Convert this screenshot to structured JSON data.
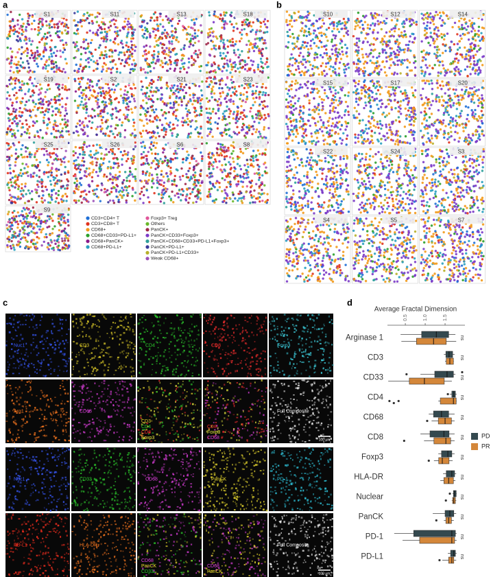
{
  "panel_a": {
    "label": "a",
    "samples": [
      "S1",
      "S11",
      "S13",
      "S18",
      "S19",
      "S2",
      "S21",
      "S23",
      "S25",
      "S26",
      "S6",
      "S8",
      "S9"
    ],
    "legend": [
      {
        "name": "CD3+CD4+ T",
        "color": "#1f6fd6"
      },
      {
        "name": "CD3+CD8+ T",
        "color": "#e0341f"
      },
      {
        "name": "CD68+",
        "color": "#f29a1c"
      },
      {
        "name": "CD68+CD33+PD-L1+",
        "color": "#2ca02c"
      },
      {
        "name": "CD68+PanCK+",
        "color": "#8b1a8b"
      },
      {
        "name": "CD68+PD-L1+",
        "color": "#2aa0c0"
      },
      {
        "name": "Foxp3+ Treg",
        "color": "#e0579a"
      },
      {
        "name": "Others",
        "color": "#6ab82a"
      },
      {
        "name": "PanCK+",
        "color": "#a0284a"
      },
      {
        "name": "PanCK+CD33+Foxp3+",
        "color": "#7b3bc8"
      },
      {
        "name": "PanCK+CD68+CD33+PD-L1+Foxp3+",
        "color": "#2fa09a"
      },
      {
        "name": "PanCK+PD-L1+",
        "color": "#3a3a9a"
      },
      {
        "name": "PanCK+PD-L1+CD33+",
        "color": "#b8b02a"
      },
      {
        "name": "Weak CD68+",
        "color": "#9b4fb8"
      }
    ]
  },
  "panel_b": {
    "label": "b",
    "samples": [
      "S10",
      "S12",
      "S14",
      "S15",
      "S17",
      "S20",
      "S22",
      "S24",
      "S3",
      "S4",
      "S5",
      "S7"
    ]
  },
  "panel_c": {
    "label": "c",
    "images": [
      {
        "labels": [
          {
            "text": "Nuc1",
            "color": "#3a5bff"
          }
        ]
      },
      {
        "labels": [
          {
            "text": "CD3",
            "color": "#e6d32a"
          }
        ]
      },
      {
        "labels": [
          {
            "text": "CD4",
            "color": "#2ed02e"
          }
        ]
      },
      {
        "labels": [
          {
            "text": "CD8",
            "color": "#ff3030"
          }
        ]
      },
      {
        "labels": [
          {
            "text": "Foxp3",
            "color": "#40d8e8"
          }
        ]
      },
      {
        "labels": [
          {
            "text": "Arg1",
            "color": "#ff7a20"
          }
        ]
      },
      {
        "labels": [
          {
            "text": "CD68",
            "color": "#e040e0"
          }
        ]
      },
      {
        "labels": [
          {
            "text": "CD3",
            "color": "#e6d32a"
          },
          {
            "text": "CD4",
            "color": "#2ed02e"
          },
          {
            "text": "CD8",
            "color": "#ff3030"
          },
          {
            "text": "Foxp3",
            "color": "#f0f040"
          }
        ]
      },
      {
        "labels": [
          {
            "text": "CD8",
            "color": "#ff3030"
          },
          {
            "text": "Foxp3",
            "color": "#f0f040"
          },
          {
            "text": "CD68",
            "color": "#e040e0"
          }
        ]
      },
      {
        "labels": [
          {
            "text": "Full Composite",
            "color": "#ffffff"
          }
        ],
        "scale_bar": "100 µm"
      },
      {
        "labels": [
          {
            "text": "Nuc1",
            "color": "#3a5bff"
          }
        ]
      },
      {
        "labels": [
          {
            "text": "CD33",
            "color": "#2ed02e"
          }
        ]
      },
      {
        "labels": [
          {
            "text": "CD68",
            "color": "#e040e0"
          }
        ]
      },
      {
        "labels": [
          {
            "text": "PanCK",
            "color": "#f0e030"
          }
        ]
      },
      {
        "labels": [
          {
            "text": "PD-1",
            "color": "#30c8e0"
          }
        ]
      },
      {
        "labels": [
          {
            "text": "PD-L1",
            "color": "#ff3020"
          }
        ]
      },
      {
        "labels": [
          {
            "text": "HLA-DR",
            "color": "#ff7a20"
          }
        ]
      },
      {
        "labels": [
          {
            "text": "CD68",
            "color": "#e040e0"
          },
          {
            "text": "PanCK",
            "color": "#f0e030"
          },
          {
            "text": "CD33",
            "color": "#2ed02e"
          }
        ]
      },
      {
        "labels": [
          {
            "text": "CD68",
            "color": "#e040e0"
          },
          {
            "text": "PanCK",
            "color": "#f0e030"
          }
        ]
      },
      {
        "labels": [
          {
            "text": "Full Composite",
            "color": "#ffffff"
          }
        ],
        "scale_bar": "100 µm"
      }
    ]
  },
  "chart_data": {
    "type": "box",
    "label": "d",
    "title": "Average Fractal Dimension",
    "categories": [
      "Arginase 1",
      "CD3",
      "CD33",
      "CD4",
      "CD68",
      "CD8",
      "Foxp3",
      "HLA-DR",
      "Nuclear",
      "PanCK",
      "PD-1",
      "PD-L1"
    ],
    "significance": [
      "ns",
      "ns",
      "ns",
      "ns",
      "ns",
      "ns",
      "ns",
      "ns",
      "ns",
      "ns",
      "ns",
      "ns"
    ],
    "xlim": [
      0.05,
      2.0
    ],
    "xticks": [
      0.5,
      {
        "value": 1,
        "label": "1.0"
      },
      1.5
    ],
    "legend": "right",
    "series": [
      {
        "name": "PD",
        "color": "#34494f",
        "values": [
          {
            "whislo": 0.38,
            "q1": 0.91,
            "med": 1.28,
            "q3": 1.59,
            "whishi": 1.76,
            "fliers": []
          },
          {
            "whislo": 1.47,
            "q1": 1.52,
            "med": 1.6,
            "q3": 1.69,
            "whishi": 1.74,
            "fliers": []
          },
          {
            "whislo": 0.88,
            "q1": 1.24,
            "med": 1.55,
            "q3": 1.71,
            "whishi": 1.76,
            "fliers": [
              0.53,
              1.93
            ]
          },
          {
            "whislo": 1.62,
            "q1": 1.67,
            "med": 1.72,
            "q3": 1.76,
            "whishi": 1.79,
            "fliers": [
              1.57
            ]
          },
          {
            "whislo": 1.09,
            "q1": 1.21,
            "med": 1.41,
            "q3": 1.59,
            "whishi": 1.74,
            "fliers": []
          },
          {
            "whislo": 0.88,
            "q1": 1.12,
            "med": 1.47,
            "q3": 1.6,
            "whishi": 1.74,
            "fliers": []
          },
          {
            "whislo": 1.33,
            "q1": 1.41,
            "med": 1.57,
            "q3": 1.67,
            "whishi": 1.74,
            "fliers": []
          },
          {
            "whislo": 1.45,
            "q1": 1.53,
            "med": 1.67,
            "q3": 1.74,
            "whishi": 1.78,
            "fliers": []
          },
          {
            "whislo": 1.69,
            "q1": 1.71,
            "med": 1.74,
            "q3": 1.78,
            "whishi": 1.79,
            "fliers": [
              1.62
            ]
          },
          {
            "whislo": 1.19,
            "q1": 1.5,
            "med": 1.62,
            "q3": 1.72,
            "whishi": 1.78,
            "fliers": []
          },
          {
            "whislo": 0.22,
            "q1": 0.71,
            "med": 1.67,
            "q3": 1.76,
            "whishi": 1.79,
            "fliers": []
          },
          {
            "whislo": 1.57,
            "q1": 1.64,
            "med": 1.72,
            "q3": 1.76,
            "whishi": 1.79,
            "fliers": []
          }
        ]
      },
      {
        "name": "PR",
        "color": "#d4873a",
        "values": [
          {
            "whislo": 0.4,
            "q1": 0.78,
            "med": 1.21,
            "q3": 1.53,
            "whishi": 1.78,
            "fliers": []
          },
          {
            "whislo": 1.5,
            "q1": 1.53,
            "med": 1.62,
            "q3": 1.71,
            "whishi": 1.72,
            "fliers": []
          },
          {
            "whislo": 0.07,
            "q1": 0.6,
            "med": 0.98,
            "q3": 1.48,
            "whishi": 1.67,
            "fliers": []
          },
          {
            "whislo": 1.33,
            "q1": 1.38,
            "med": 1.71,
            "q3": 1.78,
            "whishi": 1.79,
            "fliers": [
              0.1,
              0.21,
              0.33
            ]
          },
          {
            "whislo": 1.16,
            "q1": 1.33,
            "med": 1.5,
            "q3": 1.66,
            "whishi": 1.74,
            "fliers": [
              1.05
            ]
          },
          {
            "whislo": 0.97,
            "q1": 1.22,
            "med": 1.52,
            "q3": 1.64,
            "whishi": 1.74,
            "fliers": [
              0.47
            ]
          },
          {
            "whislo": 1.22,
            "q1": 1.34,
            "med": 1.43,
            "q3": 1.6,
            "whishi": 1.69,
            "fliers": [
              1.09
            ]
          },
          {
            "whislo": 1.38,
            "q1": 1.47,
            "med": 1.59,
            "q3": 1.71,
            "whishi": 1.76,
            "fliers": []
          },
          {
            "whislo": 1.67,
            "q1": 1.69,
            "med": 1.72,
            "q3": 1.76,
            "whishi": 1.78,
            "fliers": [
              1.52
            ]
          },
          {
            "whislo": 1.47,
            "q1": 1.52,
            "med": 1.59,
            "q3": 1.66,
            "whishi": 1.72,
            "fliers": [
              1.28
            ]
          },
          {
            "whislo": 0.43,
            "q1": 0.86,
            "med": 1.67,
            "q3": 1.74,
            "whishi": 1.79,
            "fliers": []
          },
          {
            "whislo": 1.43,
            "q1": 1.59,
            "med": 1.67,
            "q3": 1.72,
            "whishi": 1.78,
            "fliers": [
              1.36
            ]
          }
        ]
      }
    ]
  }
}
